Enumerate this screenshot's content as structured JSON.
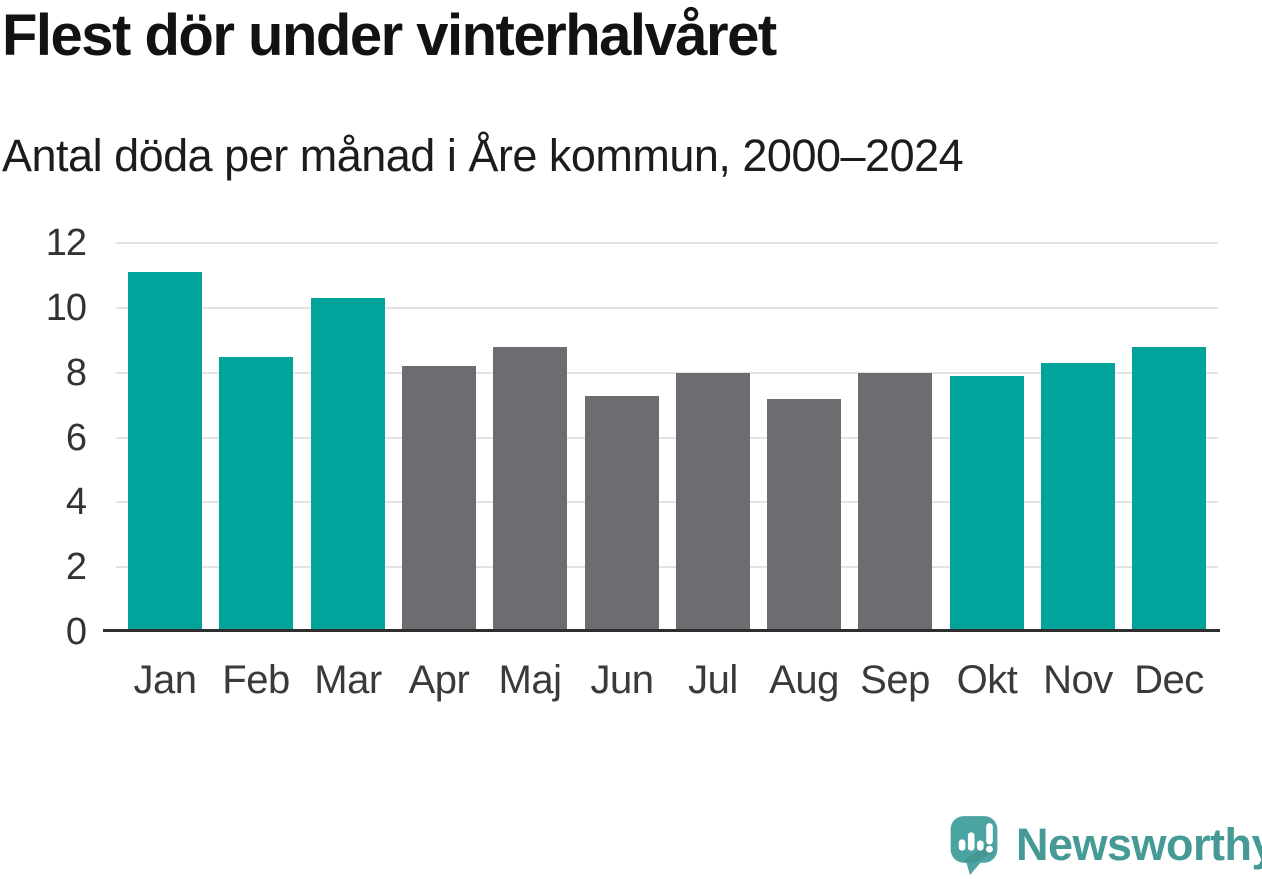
{
  "header": {
    "title": "Flest dör under vinterhalvåret",
    "subtitle": "Antal döda per månad i Åre kommun, 2000–2024"
  },
  "chart_data": {
    "type": "bar",
    "title": "Flest dör under vinterhalvåret",
    "subtitle": "Antal döda per månad i Åre kommun, 2000–2024",
    "categories": [
      "Jan",
      "Feb",
      "Mar",
      "Apr",
      "Maj",
      "Jun",
      "Jul",
      "Aug",
      "Sep",
      "Okt",
      "Nov",
      "Dec"
    ],
    "values": [
      11.0,
      8.4,
      10.2,
      8.1,
      8.7,
      7.2,
      7.9,
      7.1,
      7.9,
      7.8,
      8.2,
      8.7
    ],
    "groups": [
      "winter",
      "winter",
      "winter",
      "summer",
      "summer",
      "summer",
      "summer",
      "summer",
      "summer",
      "winter",
      "winter",
      "winter"
    ],
    "group_colors": {
      "winter": "#00a49a",
      "summer": "#6c6c71"
    },
    "xlabel": "",
    "ylabel": "",
    "yticks": [
      0,
      2,
      4,
      6,
      8,
      10,
      12
    ],
    "ylim": [
      0,
      12
    ],
    "grid": true,
    "legend_position": "none",
    "gridline_color": "#e3e3e3",
    "axis_color": "#2e2e2e",
    "tick_label_color": "#3a3a3a"
  },
  "footer": {
    "brand": "Newsworthy",
    "brand_color": "#459a96",
    "icon_color": "#4ba4a1",
    "icon": "newsworthy-speech-bubble-chart-icon"
  }
}
